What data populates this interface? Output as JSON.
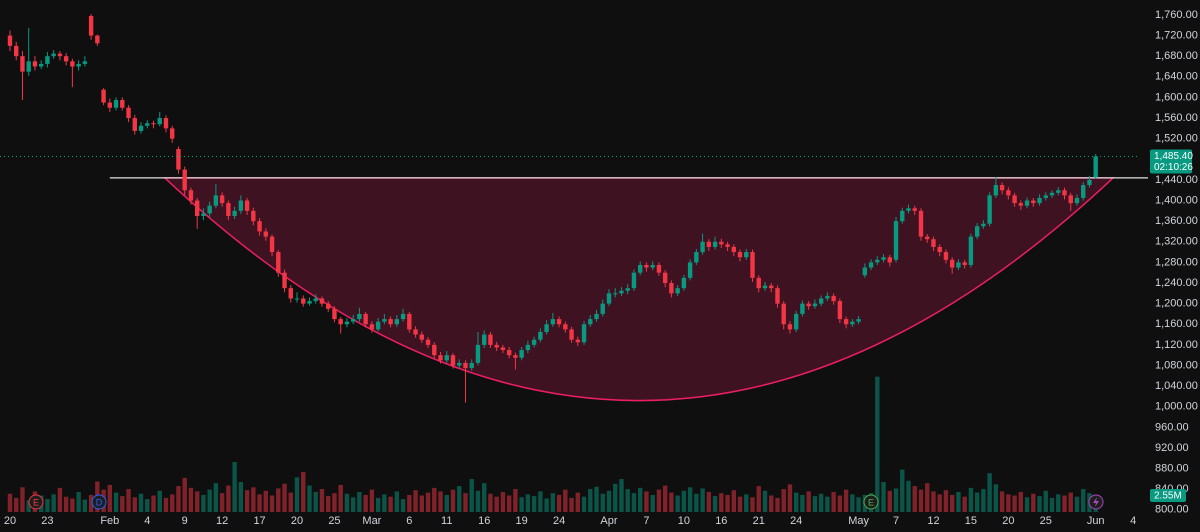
{
  "chart_data": {
    "type": "candlestick",
    "up_color": "#089981",
    "down_color": "#f23645",
    "grid": false,
    "ylim": [
      757,
      1789
    ],
    "yticks": [
      {
        "value": 1760,
        "label": "1,760.00"
      },
      {
        "value": 1720,
        "label": "1,720.00"
      },
      {
        "value": 1680,
        "label": "1,680.00"
      },
      {
        "value": 1640,
        "label": "1,640.00"
      },
      {
        "value": 1600,
        "label": "1,600.00"
      },
      {
        "value": 1560,
        "label": "1,560.00"
      },
      {
        "value": 1520,
        "label": "1,520.00"
      },
      {
        "value": 1440,
        "label": "1,440.00"
      },
      {
        "value": 1400,
        "label": "1,400.00"
      },
      {
        "value": 1360,
        "label": "1,360.00"
      },
      {
        "value": 1320,
        "label": "1,320.00"
      },
      {
        "value": 1280,
        "label": "1,280.00"
      },
      {
        "value": 1240,
        "label": "1,240.00"
      },
      {
        "value": 1200,
        "label": "1,200.00"
      },
      {
        "value": 1160,
        "label": "1,160.00"
      },
      {
        "value": 1120,
        "label": "1,120.00"
      },
      {
        "value": 1080,
        "label": "1,080.00"
      },
      {
        "value": 1040,
        "label": "1,040.00"
      },
      {
        "value": 1000,
        "label": "1,000.00"
      },
      {
        "value": 960,
        "label": "960.00"
      },
      {
        "value": 920,
        "label": "920.00"
      },
      {
        "value": 880,
        "label": "880.00"
      },
      {
        "value": 840,
        "label": "840.00"
      },
      {
        "value": 800,
        "label": "800.00"
      }
    ],
    "xlim": [
      -1.6,
      181.1
    ],
    "xticks": [
      {
        "value": 0,
        "label": "20"
      },
      {
        "value": 6,
        "label": "23"
      },
      {
        "value": 16,
        "label": "Feb"
      },
      {
        "value": 22,
        "label": "4"
      },
      {
        "value": 28,
        "label": "9"
      },
      {
        "value": 34,
        "label": "12"
      },
      {
        "value": 40,
        "label": "17"
      },
      {
        "value": 46,
        "label": "20"
      },
      {
        "value": 52,
        "label": "25"
      },
      {
        "value": 58,
        "label": "Mar"
      },
      {
        "value": 64,
        "label": "6"
      },
      {
        "value": 70,
        "label": "11"
      },
      {
        "value": 76,
        "label": "16"
      },
      {
        "value": 82,
        "label": "19"
      },
      {
        "value": 88,
        "label": "24"
      },
      {
        "value": 96,
        "label": "Apr"
      },
      {
        "value": 102,
        "label": "7"
      },
      {
        "value": 108,
        "label": "10"
      },
      {
        "value": 114,
        "label": "16"
      },
      {
        "value": 120,
        "label": "21"
      },
      {
        "value": 126,
        "label": "24"
      },
      {
        "value": 136,
        "label": "May"
      },
      {
        "value": 142,
        "label": "7"
      },
      {
        "value": 148,
        "label": "12"
      },
      {
        "value": 154,
        "label": "15"
      },
      {
        "value": 160,
        "label": "20"
      },
      {
        "value": 166,
        "label": "25"
      },
      {
        "value": 174,
        "label": "Jun"
      },
      {
        "value": 180,
        "label": "4"
      }
    ],
    "ohlc": [
      [
        1720,
        1730,
        1690,
        1700
      ],
      [
        1700,
        1708,
        1672,
        1680
      ],
      [
        1680,
        1690,
        1595,
        1650
      ],
      [
        1650,
        1735,
        1642,
        1670
      ],
      [
        1670,
        1680,
        1652,
        1660
      ],
      [
        1660,
        1672,
        1655,
        1665
      ],
      [
        1665,
        1688,
        1658,
        1680
      ],
      [
        1680,
        1692,
        1675,
        1685
      ],
      [
        1685,
        1690,
        1672,
        1680
      ],
      [
        1680,
        1686,
        1662,
        1670
      ],
      [
        1670,
        1675,
        1620,
        1660
      ],
      [
        1660,
        1672,
        1652,
        1665
      ],
      [
        1665,
        1680,
        1660,
        1670
      ],
      [
        1758,
        1762,
        1712,
        1720
      ],
      [
        1720,
        1722,
        1700,
        1705
      ],
      [
        1615,
        1618,
        1585,
        1590
      ],
      [
        1590,
        1598,
        1572,
        1580
      ],
      [
        1580,
        1600,
        1575,
        1595
      ],
      [
        1595,
        1600,
        1575,
        1580
      ],
      [
        1580,
        1585,
        1552,
        1560
      ],
      [
        1560,
        1566,
        1528,
        1535
      ],
      [
        1535,
        1552,
        1530,
        1545
      ],
      [
        1545,
        1556,
        1540,
        1550
      ],
      [
        1550,
        1555,
        1540,
        1548
      ],
      [
        1548,
        1572,
        1544,
        1560
      ],
      [
        1560,
        1565,
        1532,
        1540
      ],
      [
        1540,
        1545,
        1512,
        1520
      ],
      [
        1500,
        1505,
        1452,
        1460
      ],
      [
        1460,
        1466,
        1410,
        1420
      ],
      [
        1420,
        1425,
        1392,
        1400
      ],
      [
        1400,
        1405,
        1345,
        1370
      ],
      [
        1370,
        1385,
        1362,
        1375
      ],
      [
        1375,
        1398,
        1368,
        1390
      ],
      [
        1390,
        1432,
        1385,
        1410
      ],
      [
        1410,
        1416,
        1388,
        1395
      ],
      [
        1395,
        1400,
        1362,
        1370
      ],
      [
        1370,
        1388,
        1364,
        1380
      ],
      [
        1380,
        1410,
        1374,
        1400
      ],
      [
        1400,
        1405,
        1372,
        1380
      ],
      [
        1380,
        1386,
        1352,
        1360
      ],
      [
        1360,
        1366,
        1332,
        1340
      ],
      [
        1340,
        1346,
        1322,
        1330
      ],
      [
        1330,
        1334,
        1292,
        1300
      ],
      [
        1300,
        1304,
        1252,
        1260
      ],
      [
        1260,
        1266,
        1222,
        1230
      ],
      [
        1230,
        1236,
        1202,
        1210
      ],
      [
        1210,
        1222,
        1202,
        1210
      ],
      [
        1210,
        1216,
        1194,
        1200
      ],
      [
        1200,
        1212,
        1196,
        1205
      ],
      [
        1205,
        1218,
        1200,
        1210
      ],
      [
        1210,
        1214,
        1194,
        1200
      ],
      [
        1200,
        1205,
        1184,
        1190
      ],
      [
        1190,
        1195,
        1164,
        1170
      ],
      [
        1170,
        1174,
        1142,
        1160
      ],
      [
        1160,
        1172,
        1154,
        1165
      ],
      [
        1165,
        1178,
        1160,
        1170
      ],
      [
        1170,
        1192,
        1165,
        1180
      ],
      [
        1180,
        1184,
        1154,
        1160
      ],
      [
        1160,
        1166,
        1144,
        1150
      ],
      [
        1150,
        1172,
        1146,
        1165
      ],
      [
        1165,
        1180,
        1160,
        1170
      ],
      [
        1170,
        1175,
        1154,
        1160
      ],
      [
        1160,
        1178,
        1155,
        1170
      ],
      [
        1170,
        1190,
        1165,
        1180
      ],
      [
        1180,
        1184,
        1144,
        1150
      ],
      [
        1150,
        1156,
        1134,
        1140
      ],
      [
        1140,
        1146,
        1124,
        1130
      ],
      [
        1130,
        1135,
        1114,
        1120
      ],
      [
        1120,
        1125,
        1094,
        1100
      ],
      [
        1100,
        1106,
        1084,
        1090
      ],
      [
        1090,
        1108,
        1085,
        1100
      ],
      [
        1100,
        1104,
        1074,
        1080
      ],
      [
        1080,
        1092,
        1075,
        1085
      ],
      [
        1085,
        1090,
        1008,
        1075
      ],
      [
        1075,
        1092,
        1070,
        1085
      ],
      [
        1085,
        1145,
        1080,
        1120
      ],
      [
        1120,
        1148,
        1114,
        1140
      ],
      [
        1140,
        1145,
        1114,
        1120
      ],
      [
        1120,
        1126,
        1108,
        1115
      ],
      [
        1115,
        1120,
        1104,
        1110
      ],
      [
        1110,
        1116,
        1094,
        1100
      ],
      [
        1100,
        1105,
        1072,
        1095
      ],
      [
        1095,
        1116,
        1090,
        1110
      ],
      [
        1110,
        1128,
        1104,
        1120
      ],
      [
        1120,
        1136,
        1115,
        1130
      ],
      [
        1130,
        1152,
        1125,
        1145
      ],
      [
        1145,
        1168,
        1140,
        1160
      ],
      [
        1160,
        1182,
        1155,
        1170
      ],
      [
        1170,
        1175,
        1154,
        1160
      ],
      [
        1160,
        1165,
        1144,
        1150
      ],
      [
        1150,
        1155,
        1124,
        1130
      ],
      [
        1130,
        1136,
        1118,
        1125
      ],
      [
        1125,
        1166,
        1120,
        1160
      ],
      [
        1160,
        1178,
        1155,
        1170
      ],
      [
        1170,
        1188,
        1165,
        1180
      ],
      [
        1180,
        1208,
        1175,
        1200
      ],
      [
        1200,
        1228,
        1195,
        1220
      ],
      [
        1220,
        1230,
        1212,
        1220
      ],
      [
        1220,
        1232,
        1215,
        1225
      ],
      [
        1225,
        1238,
        1218,
        1230
      ],
      [
        1230,
        1266,
        1225,
        1260
      ],
      [
        1260,
        1282,
        1255,
        1275
      ],
      [
        1275,
        1280,
        1262,
        1270
      ],
      [
        1270,
        1282,
        1265,
        1275
      ],
      [
        1275,
        1280,
        1254,
        1260
      ],
      [
        1260,
        1265,
        1232,
        1240
      ],
      [
        1240,
        1245,
        1212,
        1220
      ],
      [
        1220,
        1236,
        1215,
        1230
      ],
      [
        1230,
        1256,
        1225,
        1250
      ],
      [
        1250,
        1286,
        1245,
        1280
      ],
      [
        1280,
        1306,
        1275,
        1300
      ],
      [
        1300,
        1336,
        1295,
        1320
      ],
      [
        1320,
        1325,
        1302,
        1310
      ],
      [
        1310,
        1330,
        1305,
        1320
      ],
      [
        1320,
        1326,
        1308,
        1315
      ],
      [
        1315,
        1320,
        1302,
        1310
      ],
      [
        1310,
        1315,
        1292,
        1300
      ],
      [
        1300,
        1305,
        1282,
        1290
      ],
      [
        1290,
        1306,
        1285,
        1300
      ],
      [
        1300,
        1305,
        1242,
        1250
      ],
      [
        1250,
        1255,
        1222,
        1230
      ],
      [
        1230,
        1242,
        1225,
        1235
      ],
      [
        1235,
        1240,
        1222,
        1230
      ],
      [
        1230,
        1235,
        1192,
        1200
      ],
      [
        1200,
        1205,
        1150,
        1160
      ],
      [
        1160,
        1166,
        1142,
        1150
      ],
      [
        1150,
        1186,
        1145,
        1180
      ],
      [
        1180,
        1206,
        1175,
        1200
      ],
      [
        1200,
        1205,
        1188,
        1195
      ],
      [
        1195,
        1208,
        1190,
        1200
      ],
      [
        1200,
        1216,
        1195,
        1210
      ],
      [
        1210,
        1222,
        1205,
        1215
      ],
      [
        1215,
        1220,
        1198,
        1205
      ],
      [
        1205,
        1210,
        1162,
        1170
      ],
      [
        1170,
        1175,
        1152,
        1160
      ],
      [
        1160,
        1170,
        1155,
        1165
      ],
      [
        1165,
        1176,
        1160,
        1170
      ],
      [
        1255,
        1278,
        1250,
        1270
      ],
      [
        1270,
        1286,
        1265,
        1280
      ],
      [
        1280,
        1292,
        1275,
        1285
      ],
      [
        1285,
        1296,
        1280,
        1290
      ],
      [
        1290,
        1295,
        1272,
        1280
      ],
      [
        1285,
        1368,
        1280,
        1360
      ],
      [
        1360,
        1386,
        1355,
        1380
      ],
      [
        1380,
        1392,
        1375,
        1385
      ],
      [
        1385,
        1390,
        1372,
        1380
      ],
      [
        1380,
        1385,
        1322,
        1330
      ],
      [
        1330,
        1335,
        1318,
        1325
      ],
      [
        1325,
        1330,
        1302,
        1310
      ],
      [
        1310,
        1315,
        1292,
        1300
      ],
      [
        1300,
        1305,
        1278,
        1285
      ],
      [
        1285,
        1290,
        1258,
        1270
      ],
      [
        1270,
        1286,
        1265,
        1280
      ],
      [
        1280,
        1285,
        1268,
        1275
      ],
      [
        1275,
        1336,
        1270,
        1330
      ],
      [
        1330,
        1356,
        1325,
        1350
      ],
      [
        1350,
        1362,
        1345,
        1355
      ],
      [
        1355,
        1416,
        1350,
        1410
      ],
      [
        1410,
        1445,
        1405,
        1430
      ],
      [
        1430,
        1435,
        1412,
        1420
      ],
      [
        1420,
        1426,
        1402,
        1410
      ],
      [
        1410,
        1415,
        1388,
        1395
      ],
      [
        1395,
        1400,
        1382,
        1390
      ],
      [
        1390,
        1406,
        1385,
        1400
      ],
      [
        1400,
        1405,
        1388,
        1395
      ],
      [
        1395,
        1412,
        1390,
        1405
      ],
      [
        1405,
        1416,
        1400,
        1410
      ],
      [
        1410,
        1420,
        1405,
        1415
      ],
      [
        1415,
        1426,
        1410,
        1420
      ],
      [
        1420,
        1425,
        1402,
        1410
      ],
      [
        1410,
        1415,
        1380,
        1395
      ],
      [
        1395,
        1412,
        1390,
        1405
      ],
      [
        1405,
        1436,
        1400,
        1430
      ],
      [
        1430,
        1448,
        1425,
        1440
      ],
      [
        1445,
        1490,
        1442,
        1485.4
      ]
    ],
    "volume_lim": [
      0,
      26
    ],
    "volume": [
      3.1,
      2.4,
      4.2,
      2.0,
      3.5,
      2.8,
      2.2,
      3.0,
      4.1,
      2.6,
      2.3,
      3.4,
      2.1,
      2.9,
      5.2,
      3.8,
      4.6,
      3.3,
      2.7,
      3.9,
      2.5,
      3.1,
      2.2,
      2.8,
      3.6,
      2.4,
      3.0,
      4.4,
      5.8,
      4.1,
      3.5,
      2.9,
      3.8,
      4.9,
      3.2,
      4.5,
      8.5,
      5.1,
      3.7,
      4.2,
      3.0,
      3.6,
      2.8,
      4.0,
      4.8,
      3.3,
      5.9,
      6.8,
      4.5,
      3.4,
      3.9,
      2.7,
      3.2,
      4.6,
      3.1,
      2.5,
      3.4,
      2.9,
      3.8,
      2.4,
      3.0,
      2.6,
      3.5,
      2.2,
      2.9,
      3.7,
      2.8,
      3.3,
      4.1,
      3.5,
      2.9,
      3.8,
      4.4,
      3.2,
      5.6,
      3.6,
      4.9,
      3.1,
      2.6,
      3.4,
      2.8,
      3.9,
      2.5,
      3.0,
      2.7,
      3.5,
      2.3,
      3.2,
      2.9,
      3.8,
      2.4,
      3.3,
      2.6,
      3.9,
      4.3,
      3.1,
      3.6,
      4.8,
      5.6,
      3.9,
      3.2,
      4.1,
      3.5,
      2.9,
      3.8,
      4.5,
      3.3,
      2.8,
      3.6,
      4.2,
      3.1,
      4.0,
      3.4,
      2.7,
      3.2,
      2.9,
      3.7,
      2.6,
      3.0,
      2.5,
      4.4,
      3.6,
      2.8,
      2.4,
      3.9,
      4.7,
      3.3,
      2.9,
      3.5,
      2.7,
      3.1,
      2.6,
      3.4,
      2.8,
      3.8,
      3.0,
      2.5,
      2.9,
      3.2,
      23.0,
      5.1,
      3.6,
      4.0,
      7.2,
      5.3,
      4.4,
      3.8,
      4.9,
      3.5,
      3.0,
      3.7,
      2.9,
      3.4,
      2.6,
      4.1,
      3.3,
      3.9,
      6.6,
      4.7,
      3.5,
      3.0,
      2.8,
      3.4,
      2.5,
      3.1,
      2.7,
      3.6,
      2.4,
      3.0,
      2.8,
      3.3,
      2.6,
      3.9,
      3.2,
      2.55
    ],
    "volume_label": "2.55M",
    "last_price_label": "1,485.40",
    "countdown": "02:10:26",
    "resistance": 1444,
    "cup_bottom": 1012,
    "events": [
      "E",
      "D",
      "E"
    ]
  }
}
